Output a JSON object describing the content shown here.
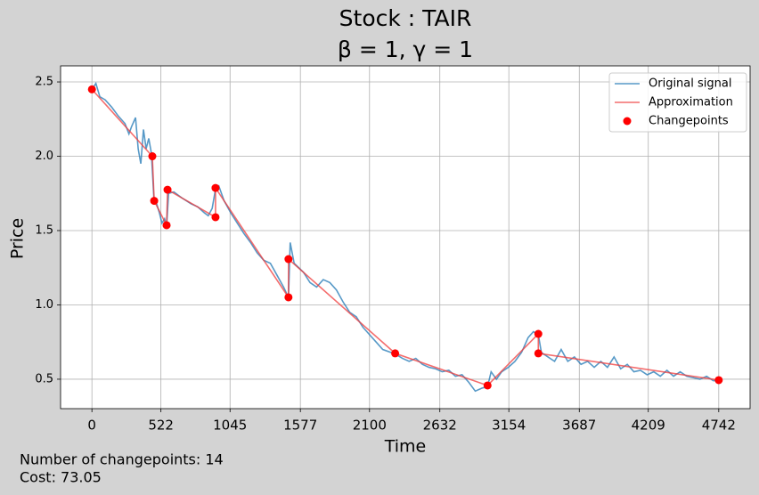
{
  "chart_data": {
    "type": "line",
    "title": "Stock : TAIR",
    "subtitle": "β = 1, γ = 1",
    "x_label": "Time",
    "y_label": "Price",
    "annotations": [
      "Number of changepoints: 14",
      "Cost: 73.05"
    ],
    "xlim": [
      -237.1,
      4979.1
    ],
    "ylim": [
      0.302,
      2.608
    ],
    "xticks": [
      0,
      522,
      1045,
      1577,
      2100,
      2632,
      3154,
      3687,
      4209,
      4742
    ],
    "yticks": [
      0.5,
      {
        "value": 1.0,
        "label": "1.0"
      },
      1.5,
      {
        "value": 2.0,
        "label": "2.0"
      },
      2.5
    ],
    "grid": true,
    "legend": "upper right",
    "series": [
      {
        "name": "Original signal",
        "color": "#1f77b4",
        "mode": "line",
        "x": [
          0,
          30,
          60,
          100,
          150,
          200,
          250,
          280,
          300,
          330,
          350,
          370,
          390,
          410,
          430,
          450,
          470,
          490,
          510,
          530,
          550,
          565,
          580,
          620,
          680,
          750,
          800,
          850,
          880,
          910,
          935,
          960,
          1000,
          1050,
          1100,
          1150,
          1200,
          1250,
          1300,
          1350,
          1400,
          1450,
          1487,
          1500,
          1530,
          1600,
          1650,
          1700,
          1750,
          1800,
          1850,
          1900,
          1950,
          2000,
          2050,
          2100,
          2150,
          2200,
          2294,
          2350,
          2400,
          2450,
          2500,
          2550,
          2600,
          2650,
          2700,
          2750,
          2800,
          2850,
          2900,
          2950,
          2993,
          3020,
          3060,
          3100,
          3150,
          3200,
          3250,
          3300,
          3340,
          3377,
          3400,
          3450,
          3500,
          3550,
          3600,
          3650,
          3700,
          3750,
          3800,
          3850,
          3900,
          3950,
          4000,
          4050,
          4100,
          4150,
          4200,
          4250,
          4300,
          4350,
          4400,
          4450,
          4500,
          4550,
          4600,
          4650,
          4700,
          4742
        ],
        "values": [
          2.45,
          2.49,
          2.4,
          2.38,
          2.33,
          2.27,
          2.22,
          2.15,
          2.2,
          2.26,
          2.05,
          1.95,
          2.18,
          2.05,
          2.12,
          2.02,
          1.7,
          1.68,
          1.62,
          1.55,
          1.58,
          1.53,
          1.75,
          1.76,
          1.72,
          1.68,
          1.66,
          1.62,
          1.6,
          1.65,
          1.78,
          1.8,
          1.7,
          1.62,
          1.55,
          1.48,
          1.42,
          1.35,
          1.3,
          1.28,
          1.2,
          1.12,
          1.05,
          1.42,
          1.28,
          1.22,
          1.15,
          1.12,
          1.17,
          1.15,
          1.1,
          1.02,
          0.95,
          0.92,
          0.85,
          0.8,
          0.75,
          0.7,
          0.67,
          0.64,
          0.62,
          0.64,
          0.6,
          0.58,
          0.57,
          0.55,
          0.56,
          0.52,
          0.53,
          0.48,
          0.42,
          0.44,
          0.45,
          0.55,
          0.5,
          0.55,
          0.58,
          0.62,
          0.68,
          0.78,
          0.82,
          0.8,
          0.68,
          0.65,
          0.62,
          0.7,
          0.62,
          0.65,
          0.6,
          0.62,
          0.58,
          0.62,
          0.58,
          0.65,
          0.57,
          0.6,
          0.55,
          0.56,
          0.53,
          0.55,
          0.52,
          0.56,
          0.52,
          0.55,
          0.52,
          0.51,
          0.5,
          0.52,
          0.49,
          0.49
        ]
      },
      {
        "name": "Approximation",
        "color": "#f03c3c",
        "mode": "line",
        "x": [
          0,
          457,
          471,
          565,
          572,
          935,
          935,
          1487,
          1487,
          2294,
          2993,
          3377,
          3377,
          4742
        ],
        "values": [
          2.45,
          2.0,
          1.7,
          1.536,
          1.775,
          1.59,
          1.787,
          1.051,
          1.308,
          0.674,
          0.458,
          0.805,
          0.674,
          0.494
        ]
      },
      {
        "name": "Changepoints",
        "color": "#ff0000",
        "mode": "markers",
        "x": [
          0,
          457,
          471,
          565,
          572,
          935,
          935,
          1487,
          1487,
          2294,
          2993,
          3377,
          3377,
          4742
        ],
        "values": [
          2.45,
          2.0,
          1.7,
          1.536,
          1.775,
          1.59,
          1.787,
          1.051,
          1.308,
          0.674,
          0.458,
          0.805,
          0.674,
          0.494
        ]
      }
    ]
  }
}
